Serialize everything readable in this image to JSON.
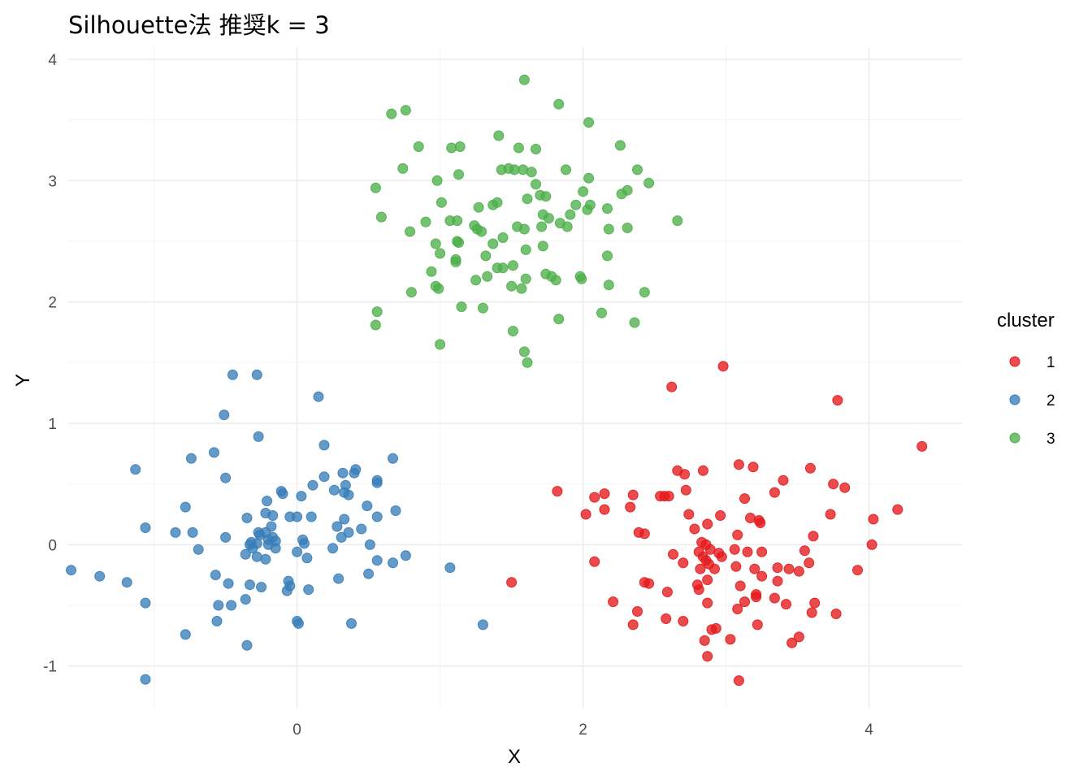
{
  "chart_data": {
    "type": "scatter",
    "title": "Silhouette法 推奨k = 3",
    "xlabel": "X",
    "ylabel": "Y",
    "xlim": [
      -1.6,
      4.65
    ],
    "ylim": [
      -1.35,
      4.1
    ],
    "xticks": [
      0,
      2,
      4
    ],
    "yticks": [
      -1,
      0,
      1,
      2,
      3,
      4
    ],
    "grid": true,
    "legend": {
      "title": "cluster",
      "position": "right"
    },
    "series": [
      {
        "name": "1",
        "color": "#E41A1C",
        "points": [
          [
            2.62,
            1.3
          ],
          [
            2.98,
            1.47
          ],
          [
            3.78,
            1.19
          ],
          [
            4.37,
            0.81
          ],
          [
            1.82,
            0.44
          ],
          [
            1.5,
            -0.31
          ],
          [
            3.09,
            0.66
          ],
          [
            3.19,
            0.64
          ],
          [
            3.59,
            0.63
          ],
          [
            2.66,
            0.61
          ],
          [
            2.71,
            0.58
          ],
          [
            2.84,
            0.61
          ],
          [
            3.4,
            0.53
          ],
          [
            3.75,
            0.5
          ],
          [
            3.83,
            0.47
          ],
          [
            2.15,
            0.42
          ],
          [
            2.08,
            0.39
          ],
          [
            2.35,
            0.41
          ],
          [
            2.57,
            0.4
          ],
          [
            2.6,
            0.4
          ],
          [
            2.54,
            0.4
          ],
          [
            2.72,
            0.45
          ],
          [
            3.13,
            0.38
          ],
          [
            3.34,
            0.43
          ],
          [
            4.2,
            0.29
          ],
          [
            4.03,
            0.21
          ],
          [
            3.73,
            0.25
          ],
          [
            2.02,
            0.25
          ],
          [
            2.15,
            0.29
          ],
          [
            2.33,
            0.31
          ],
          [
            2.74,
            0.25
          ],
          [
            3.17,
            0.22
          ],
          [
            3.23,
            0.2
          ],
          [
            3.24,
            0.18
          ],
          [
            2.87,
            0.17
          ],
          [
            2.96,
            0.24
          ],
          [
            2.78,
            0.13
          ],
          [
            2.39,
            0.1
          ],
          [
            2.43,
            0.09
          ],
          [
            3.08,
            0.08
          ],
          [
            3.61,
            0.07
          ],
          [
            2.86,
            0.0
          ],
          [
            2.83,
            0.02
          ],
          [
            4.02,
            0.0
          ],
          [
            3.15,
            -0.06
          ],
          [
            3.06,
            -0.04
          ],
          [
            3.25,
            -0.06
          ],
          [
            3.55,
            -0.05
          ],
          [
            2.63,
            -0.08
          ],
          [
            2.81,
            -0.06
          ],
          [
            2.89,
            -0.04
          ],
          [
            2.95,
            -0.07
          ],
          [
            2.97,
            -0.1
          ],
          [
            2.7,
            -0.15
          ],
          [
            2.84,
            -0.1
          ],
          [
            2.86,
            -0.13
          ],
          [
            2.88,
            -0.16
          ],
          [
            3.07,
            -0.18
          ],
          [
            3.2,
            -0.2
          ],
          [
            3.36,
            -0.19
          ],
          [
            3.44,
            -0.2
          ],
          [
            3.51,
            -0.22
          ],
          [
            3.58,
            -0.15
          ],
          [
            2.08,
            -0.14
          ],
          [
            2.82,
            -0.2
          ],
          [
            2.92,
            -0.2
          ],
          [
            3.25,
            -0.26
          ],
          [
            3.36,
            -0.3
          ],
          [
            3.92,
            -0.21
          ],
          [
            2.43,
            -0.31
          ],
          [
            2.46,
            -0.32
          ],
          [
            2.8,
            -0.33
          ],
          [
            2.87,
            -0.29
          ],
          [
            3.1,
            -0.34
          ],
          [
            2.81,
            -0.37
          ],
          [
            2.59,
            -0.39
          ],
          [
            3.21,
            -0.43
          ],
          [
            3.13,
            -0.47
          ],
          [
            3.21,
            -0.41
          ],
          [
            2.21,
            -0.47
          ],
          [
            2.87,
            -0.48
          ],
          [
            3.34,
            -0.44
          ],
          [
            3.42,
            -0.49
          ],
          [
            3.62,
            -0.48
          ],
          [
            2.38,
            -0.55
          ],
          [
            3.08,
            -0.53
          ],
          [
            3.6,
            -0.56
          ],
          [
            3.77,
            -0.57
          ],
          [
            2.58,
            -0.61
          ],
          [
            2.7,
            -0.63
          ],
          [
            2.35,
            -0.66
          ],
          [
            3.22,
            -0.66
          ],
          [
            2.93,
            -0.69
          ],
          [
            2.9,
            -0.7
          ],
          [
            2.85,
            -0.79
          ],
          [
            3.03,
            -0.78
          ],
          [
            3.46,
            -0.81
          ],
          [
            3.51,
            -0.76
          ],
          [
            2.87,
            -0.92
          ],
          [
            3.09,
            -1.12
          ]
        ]
      },
      {
        "name": "2",
        "color": "#377EB8",
        "points": [
          [
            -0.45,
            1.4
          ],
          [
            -0.28,
            1.4
          ],
          [
            0.15,
            1.22
          ],
          [
            -0.51,
            1.07
          ],
          [
            -0.27,
            0.89
          ],
          [
            0.19,
            0.82
          ],
          [
            -0.58,
            0.76
          ],
          [
            -0.74,
            0.71
          ],
          [
            0.67,
            0.71
          ],
          [
            -1.13,
            0.62
          ],
          [
            0.41,
            0.62
          ],
          [
            0.4,
            0.59
          ],
          [
            0.32,
            0.59
          ],
          [
            0.19,
            0.56
          ],
          [
            -0.5,
            0.55
          ],
          [
            0.56,
            0.53
          ],
          [
            0.56,
            0.51
          ],
          [
            0.34,
            0.49
          ],
          [
            0.11,
            0.49
          ],
          [
            0.26,
            0.45
          ],
          [
            -0.11,
            0.44
          ],
          [
            -0.1,
            0.42
          ],
          [
            -0.21,
            0.36
          ],
          [
            0.36,
            0.41
          ],
          [
            0.03,
            0.4
          ],
          [
            0.33,
            0.43
          ],
          [
            0.49,
            0.32
          ],
          [
            0.69,
            0.28
          ],
          [
            -0.78,
            0.31
          ],
          [
            -0.22,
            0.26
          ],
          [
            -0.17,
            0.24
          ],
          [
            -0.05,
            0.23
          ],
          [
            0.1,
            0.23
          ],
          [
            0.0,
            0.23
          ],
          [
            0.56,
            0.23
          ],
          [
            0.33,
            0.21
          ],
          [
            -0.35,
            0.22
          ],
          [
            -0.18,
            0.15
          ],
          [
            0.28,
            0.15
          ],
          [
            0.45,
            0.13
          ],
          [
            -1.06,
            0.14
          ],
          [
            -0.73,
            0.1
          ],
          [
            -0.85,
            0.1
          ],
          [
            -0.27,
            0.1
          ],
          [
            -0.22,
            0.1
          ],
          [
            -0.26,
            0.08
          ],
          [
            0.36,
            0.1
          ],
          [
            0.31,
            0.06
          ],
          [
            -0.17,
            0.06
          ],
          [
            -0.2,
            0.04
          ],
          [
            -0.15,
            0.03
          ],
          [
            -0.5,
            0.06
          ],
          [
            -0.32,
            0.02
          ],
          [
            0.04,
            0.04
          ],
          [
            -0.28,
            0.01
          ],
          [
            -0.33,
            0.0
          ],
          [
            -0.2,
            0.0
          ],
          [
            0.51,
            0.0
          ],
          [
            0.05,
            0.01
          ],
          [
            0.25,
            -0.03
          ],
          [
            -0.31,
            -0.03
          ],
          [
            -0.15,
            -0.03
          ],
          [
            -0.69,
            -0.04
          ],
          [
            -0.36,
            -0.08
          ],
          [
            -0.28,
            -0.1
          ],
          [
            0.0,
            -0.06
          ],
          [
            0.76,
            -0.09
          ],
          [
            -0.22,
            -0.12
          ],
          [
            0.07,
            -0.11
          ],
          [
            0.56,
            -0.13
          ],
          [
            0.67,
            -0.15
          ],
          [
            1.07,
            -0.19
          ],
          [
            -1.58,
            -0.21
          ],
          [
            -1.38,
            -0.26
          ],
          [
            -0.57,
            -0.25
          ],
          [
            -1.19,
            -0.31
          ],
          [
            -0.48,
            -0.32
          ],
          [
            -0.33,
            -0.33
          ],
          [
            -0.06,
            -0.3
          ],
          [
            -0.05,
            -0.34
          ],
          [
            0.29,
            -0.28
          ],
          [
            0.5,
            -0.24
          ],
          [
            -0.25,
            -0.35
          ],
          [
            -0.07,
            -0.38
          ],
          [
            0.08,
            -0.37
          ],
          [
            -0.36,
            -0.45
          ],
          [
            -1.06,
            -0.48
          ],
          [
            -0.55,
            -0.5
          ],
          [
            -0.46,
            -0.5
          ],
          [
            -0.56,
            -0.63
          ],
          [
            0.0,
            -0.63
          ],
          [
            0.01,
            -0.65
          ],
          [
            0.38,
            -0.65
          ],
          [
            1.3,
            -0.66
          ],
          [
            -0.78,
            -0.74
          ],
          [
            -0.35,
            -0.83
          ],
          [
            -1.06,
            -1.11
          ]
        ]
      },
      {
        "name": "3",
        "color": "#4DAF4A",
        "points": [
          [
            1.59,
            3.83
          ],
          [
            1.83,
            3.63
          ],
          [
            0.76,
            3.58
          ],
          [
            0.66,
            3.55
          ],
          [
            2.04,
            3.48
          ],
          [
            1.41,
            3.37
          ],
          [
            1.08,
            3.27
          ],
          [
            1.14,
            3.28
          ],
          [
            0.85,
            3.28
          ],
          [
            1.55,
            3.27
          ],
          [
            1.67,
            3.26
          ],
          [
            2.26,
            3.29
          ],
          [
            0.74,
            3.1
          ],
          [
            1.13,
            3.05
          ],
          [
            1.43,
            3.09
          ],
          [
            1.48,
            3.1
          ],
          [
            1.52,
            3.09
          ],
          [
            1.58,
            3.09
          ],
          [
            1.64,
            3.07
          ],
          [
            1.88,
            3.09
          ],
          [
            2.38,
            3.09
          ],
          [
            1.67,
            2.97
          ],
          [
            2.04,
            3.02
          ],
          [
            2.46,
            2.98
          ],
          [
            0.98,
            3.0
          ],
          [
            0.55,
            2.94
          ],
          [
            2.0,
            2.91
          ],
          [
            2.31,
            2.92
          ],
          [
            2.27,
            2.89
          ],
          [
            1.7,
            2.88
          ],
          [
            1.74,
            2.87
          ],
          [
            1.61,
            2.85
          ],
          [
            1.01,
            2.82
          ],
          [
            1.27,
            2.78
          ],
          [
            1.37,
            2.8
          ],
          [
            1.4,
            2.82
          ],
          [
            1.91,
            2.72
          ],
          [
            1.95,
            2.8
          ],
          [
            2.05,
            2.8
          ],
          [
            2.03,
            2.76
          ],
          [
            2.17,
            2.77
          ],
          [
            0.59,
            2.7
          ],
          [
            1.72,
            2.72
          ],
          [
            1.76,
            2.69
          ],
          [
            1.07,
            2.67
          ],
          [
            1.12,
            2.67
          ],
          [
            0.9,
            2.66
          ],
          [
            2.66,
            2.67
          ],
          [
            1.24,
            2.63
          ],
          [
            1.26,
            2.6
          ],
          [
            1.54,
            2.62
          ],
          [
            1.59,
            2.6
          ],
          [
            1.89,
            2.62
          ],
          [
            1.71,
            2.62
          ],
          [
            1.84,
            2.65
          ],
          [
            2.18,
            2.6
          ],
          [
            2.31,
            2.61
          ],
          [
            0.79,
            2.58
          ],
          [
            1.29,
            2.58
          ],
          [
            1.44,
            2.53
          ],
          [
            1.12,
            2.5
          ],
          [
            1.13,
            2.49
          ],
          [
            0.97,
            2.48
          ],
          [
            1.37,
            2.48
          ],
          [
            1.6,
            2.43
          ],
          [
            1.72,
            2.46
          ],
          [
            1.0,
            2.4
          ],
          [
            1.32,
            2.38
          ],
          [
            1.11,
            2.35
          ],
          [
            1.11,
            2.33
          ],
          [
            1.51,
            2.3
          ],
          [
            2.17,
            2.38
          ],
          [
            1.4,
            2.28
          ],
          [
            1.44,
            2.28
          ],
          [
            1.25,
            2.18
          ],
          [
            1.33,
            2.21
          ],
          [
            0.94,
            2.25
          ],
          [
            1.74,
            2.23
          ],
          [
            1.78,
            2.21
          ],
          [
            1.6,
            2.19
          ],
          [
            1.81,
            2.18
          ],
          [
            1.98,
            2.21
          ],
          [
            1.99,
            2.19
          ],
          [
            0.97,
            2.13
          ],
          [
            0.99,
            2.11
          ],
          [
            1.5,
            2.13
          ],
          [
            1.57,
            2.11
          ],
          [
            2.18,
            2.14
          ],
          [
            2.43,
            2.08
          ],
          [
            0.8,
            2.08
          ],
          [
            1.15,
            1.96
          ],
          [
            1.3,
            1.95
          ],
          [
            0.56,
            1.92
          ],
          [
            0.55,
            1.81
          ],
          [
            1.83,
            1.86
          ],
          [
            2.13,
            1.91
          ],
          [
            2.36,
            1.83
          ],
          [
            1.51,
            1.76
          ],
          [
            1.0,
            1.65
          ],
          [
            1.59,
            1.59
          ],
          [
            1.61,
            1.5
          ]
        ]
      }
    ]
  }
}
